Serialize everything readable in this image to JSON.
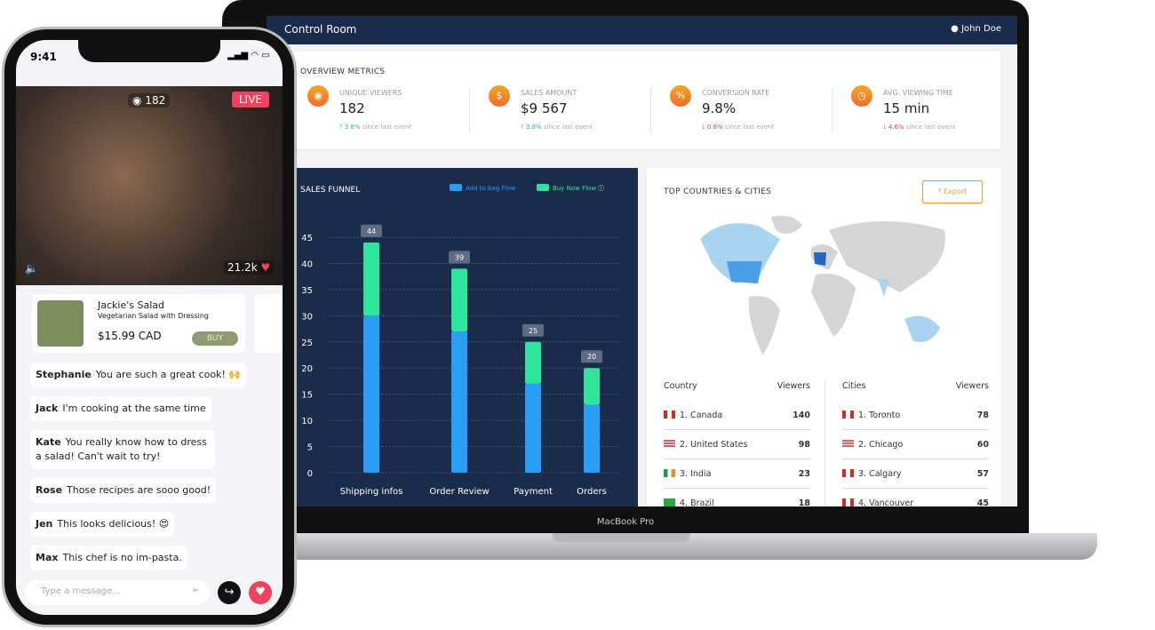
{
  "laptop": {
    "brand_label": "MacBook Pro",
    "header": {
      "title": "Control Room",
      "user": "John Doe",
      "user_icon": "user-circle-icon"
    },
    "overview": {
      "title": "OVERVIEW METRICS",
      "metrics": [
        {
          "label": "UNIQUE VIEWERS",
          "value": "182",
          "change": "3.8%",
          "direction": "up",
          "note": "since last event",
          "icon": "eye-icon"
        },
        {
          "label": "SALES AMOUNT",
          "value": "$9 567",
          "change": "3.8%",
          "direction": "up",
          "note": "since last event",
          "icon": "dollar-icon"
        },
        {
          "label": "CONVERSION RATE",
          "value": "9.8%",
          "change": "0.8%",
          "direction": "down",
          "note": "since last event",
          "icon": "percent-icon"
        },
        {
          "label": "AVG. VIEWING TIME",
          "value": "15 min",
          "change": "4.6%",
          "direction": "down",
          "note": "since last event",
          "icon": "clock-icon"
        }
      ]
    },
    "countries": {
      "title": "TOP COUNTRIES & CITIES",
      "export_label": "Export",
      "country_header": "Country",
      "viewers_header": "Viewers",
      "cities_header": "Cities",
      "country_rows": [
        {
          "name": "1. Canada",
          "viewers": "140",
          "flag": "ca"
        },
        {
          "name": "2. United States",
          "viewers": "98",
          "flag": "us"
        },
        {
          "name": "3. India",
          "viewers": "23",
          "flag": "in"
        },
        {
          "name": "4. Brazil",
          "viewers": "18",
          "flag": "br"
        }
      ],
      "city_rows": [
        {
          "name": "1. Toronto",
          "viewers": "78",
          "flag": "ca"
        },
        {
          "name": "2. Chicago",
          "viewers": "60",
          "flag": "us"
        },
        {
          "name": "3. Calgary",
          "viewers": "57",
          "flag": "ca"
        },
        {
          "name": "4. Vancouver",
          "viewers": "45",
          "flag": "ca"
        }
      ]
    }
  },
  "chart_data": {
    "type": "bar",
    "stacked": true,
    "title": "SALES FUNNEL",
    "categories": [
      "Shipping infos",
      "Order Review",
      "Payment",
      "Orders"
    ],
    "series": [
      {
        "name": "Add to bag Flow",
        "values": [
          30,
          27,
          17,
          13
        ],
        "color": "#2a9df4"
      },
      {
        "name": "Buy Now Flow",
        "values": [
          14,
          12,
          8,
          7
        ],
        "color": "#2ee59d"
      }
    ],
    "totals": [
      "44",
      "39",
      "25",
      "20"
    ],
    "ylim": [
      0,
      45
    ],
    "yticks": [
      0,
      5,
      10,
      15,
      20,
      25,
      30,
      35,
      40,
      45
    ],
    "grid": true,
    "legend": "top-right"
  },
  "phone": {
    "time": "9:41",
    "viewers": "182",
    "live_label": "LIVE",
    "likes": "21.2k",
    "product": {
      "name": "Jackie's Salad",
      "description": "Vegetarian Salad with Dressing",
      "price": "$15.99 CAD",
      "buy_label": "BUY"
    },
    "messages": [
      {
        "user": "Stephanie",
        "text": "You are such a great cook! 🙌"
      },
      {
        "user": "Jack",
        "text": "I'm cooking at the same time"
      },
      {
        "user": "Kate",
        "text": "You really know how to dress a salad! Can't wait to try!"
      },
      {
        "user": "Rose",
        "text": "Those recipes are sooo good!"
      },
      {
        "user": "Jen",
        "text": "This looks delicious! 😍"
      },
      {
        "user": "Max",
        "text": "This chef is no im-pasta."
      }
    ],
    "input_placeholder": "Type a message..."
  }
}
